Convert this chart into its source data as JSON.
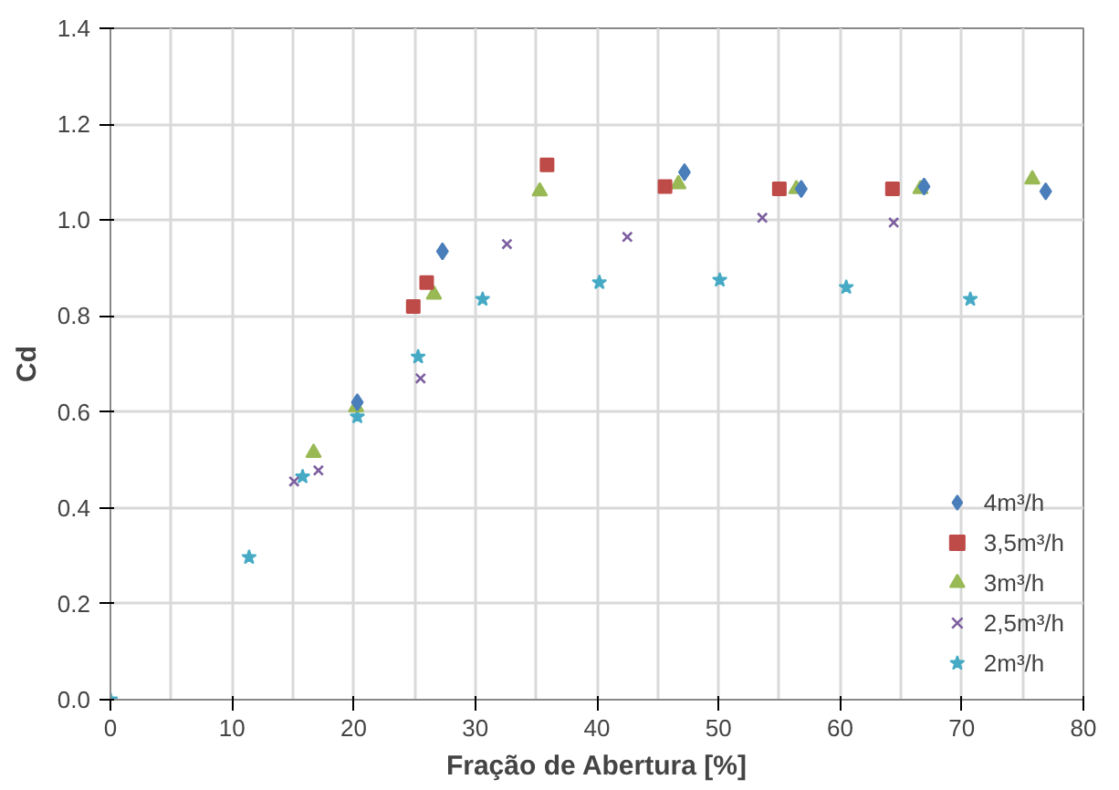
{
  "chart_data": {
    "type": "scatter",
    "xlabel": "Fração de Abertura [%]",
    "ylabel": "Cd",
    "xlim": [
      0,
      80
    ],
    "xticks": [
      0,
      10,
      20,
      30,
      40,
      50,
      60,
      70,
      80
    ],
    "ylim": [
      0,
      1.4
    ],
    "yticks": [
      {
        "value": 0,
        "label": "0.0"
      },
      {
        "value": 0.2,
        "label": "0.2"
      },
      {
        "value": 0.4,
        "label": "0.4"
      },
      {
        "value": 0.6,
        "label": "0.6"
      },
      {
        "value": 0.8,
        "label": "0.8"
      },
      {
        "value": 1.0,
        "label": "1.0"
      },
      {
        "value": 1.2,
        "label": "1.2"
      },
      {
        "value": 1.4,
        "label": "1.4"
      }
    ],
    "grid": true,
    "legend": "bottom right",
    "series": [
      {
        "name": "4m³/h",
        "color": "#4a7ebb",
        "marker": "diamond",
        "x": [
          20.3,
          27.3,
          47.2,
          56.8,
          66.9,
          76.9
        ],
        "values": [
          0.62,
          0.935,
          1.1,
          1.065,
          1.07,
          1.06
        ]
      },
      {
        "name": "3,5m³/h",
        "color": "#be4b48",
        "marker": "square",
        "x": [
          24.9,
          26.0,
          35.9,
          45.6,
          55.0,
          64.3
        ],
        "values": [
          0.82,
          0.87,
          1.115,
          1.07,
          1.065,
          1.065
        ]
      },
      {
        "name": "3m³/h",
        "color": "#98b954",
        "marker": "triangle",
        "x": [
          16.7,
          20.2,
          26.6,
          35.3,
          46.7,
          56.4,
          66.6,
          75.8
        ],
        "values": [
          0.515,
          0.61,
          0.845,
          1.06,
          1.075,
          1.065,
          1.065,
          1.085
        ]
      },
      {
        "name": "2,5m³/h",
        "color": "#7d5fa0",
        "marker": "cross",
        "x": [
          15.1,
          17.1,
          25.5,
          32.6,
          42.5,
          53.6,
          64.4
        ],
        "values": [
          0.455,
          0.478,
          0.67,
          0.95,
          0.965,
          1.005,
          0.995
        ]
      },
      {
        "name": "2m³/h",
        "color": "#46aac5",
        "marker": "star",
        "x": [
          0,
          11.4,
          15.8,
          20.3,
          25.3,
          30.6,
          40.2,
          50.1,
          60.5,
          70.7
        ],
        "values": [
          0,
          0.297,
          0.465,
          0.59,
          0.715,
          0.835,
          0.87,
          0.875,
          0.86,
          0.835
        ]
      }
    ]
  }
}
